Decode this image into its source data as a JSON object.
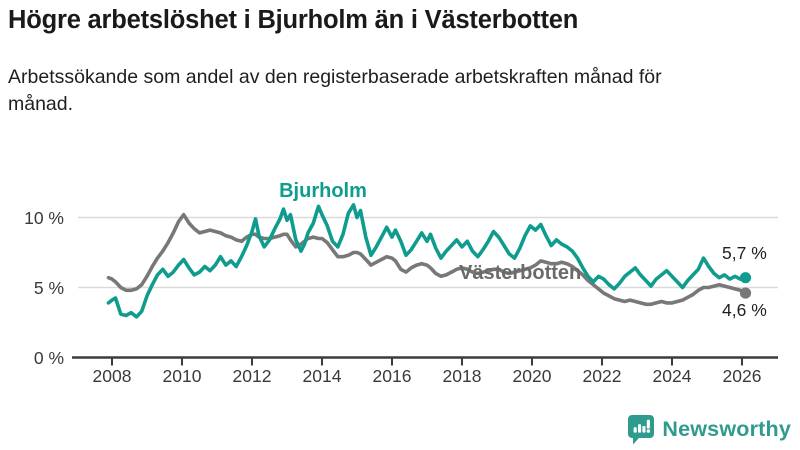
{
  "title": "Högre arbetslöshet i Bjurholm än i Västerbotten",
  "subtitle": "Arbetssökande som andel av den registerbaserade arbetskraften månad för månad.",
  "branding": {
    "logo_text": "Newsworthy",
    "logo_color": "#2f9b8d",
    "logo_icon": "bar-chart-speech-bubble-icon"
  },
  "colors": {
    "bjurholm_teal": "#0f9c8e",
    "vasterbotten_gray": "#787878",
    "vasterbotten_label_gray": "#6a6a6a",
    "grid": "#dadada",
    "axis": "#3c3c3c",
    "axis_text": "#3a3a3a",
    "end_label_text": "#1f1f1f"
  },
  "chart_data": {
    "type": "line",
    "title": "Högre arbetslöshet i Bjurholm än i Västerbotten",
    "xlabel": "",
    "ylabel": "",
    "unit": "%",
    "grid": "horizontal",
    "legend_position": "inline-labels",
    "x_axis": {
      "tick_values": [
        2008,
        2010,
        2012,
        2014,
        2016,
        2018,
        2020,
        2022,
        2024,
        2026
      ],
      "tick_labels": [
        "2008",
        "2010",
        "2012",
        "2014",
        "2016",
        "2018",
        "2020",
        "2022",
        "2024",
        "2026"
      ],
      "range": [
        2007.8,
        2027.0
      ]
    },
    "y_axis": {
      "tick_values": [
        0,
        5,
        10
      ],
      "tick_labels": [
        "0 %",
        "5 %",
        "10 %"
      ],
      "range": [
        0,
        11.5
      ]
    },
    "x": [
      2007.9,
      2008.0,
      2008.1,
      2008.25,
      2008.4,
      2008.55,
      2008.7,
      2008.85,
      2009.0,
      2009.15,
      2009.3,
      2009.45,
      2009.6,
      2009.75,
      2009.9,
      2010.05,
      2010.2,
      2010.35,
      2010.5,
      2010.65,
      2010.8,
      2010.95,
      2011.1,
      2011.25,
      2011.4,
      2011.55,
      2011.7,
      2011.85,
      2012.0,
      2012.1,
      2012.2,
      2012.35,
      2012.5,
      2012.65,
      2012.8,
      2012.9,
      2013.0,
      2013.1,
      2013.25,
      2013.4,
      2013.5,
      2013.6,
      2013.75,
      2013.9,
      2014.0,
      2014.15,
      2014.3,
      2014.45,
      2014.6,
      2014.75,
      2014.9,
      2015.0,
      2015.1,
      2015.25,
      2015.4,
      2015.55,
      2015.7,
      2015.85,
      2016.0,
      2016.1,
      2016.25,
      2016.4,
      2016.55,
      2016.7,
      2016.85,
      2017.0,
      2017.1,
      2017.25,
      2017.4,
      2017.55,
      2017.7,
      2017.85,
      2018.0,
      2018.15,
      2018.3,
      2018.45,
      2018.6,
      2018.75,
      2018.9,
      2019.05,
      2019.2,
      2019.35,
      2019.5,
      2019.65,
      2019.8,
      2019.95,
      2020.1,
      2020.25,
      2020.4,
      2020.55,
      2020.7,
      2020.85,
      2021.0,
      2021.15,
      2021.3,
      2021.45,
      2021.6,
      2021.75,
      2021.9,
      2022.05,
      2022.2,
      2022.35,
      2022.5,
      2022.65,
      2022.8,
      2022.95,
      2023.1,
      2023.25,
      2023.4,
      2023.55,
      2023.7,
      2023.85,
      2024.0,
      2024.15,
      2024.3,
      2024.45,
      2024.6,
      2024.75,
      2024.9,
      2025.05,
      2025.2,
      2025.35,
      2025.5,
      2025.65,
      2025.8,
      2025.95,
      2026.1
    ],
    "series": [
      {
        "name": "Bjurholm",
        "color": "#0f9c8e",
        "label_color": "#0f9c8e",
        "end_label": "5,7 %",
        "end_value": 5.7,
        "values": [
          3.9,
          4.1,
          4.25,
          3.1,
          3.0,
          3.2,
          2.9,
          3.3,
          4.4,
          5.2,
          5.9,
          6.3,
          5.8,
          6.1,
          6.6,
          7.0,
          6.4,
          5.9,
          6.1,
          6.5,
          6.2,
          6.6,
          7.2,
          6.6,
          6.9,
          6.5,
          7.2,
          8.0,
          9.0,
          9.9,
          8.7,
          7.9,
          8.4,
          9.2,
          9.9,
          10.6,
          9.8,
          10.2,
          8.4,
          7.6,
          8.1,
          8.9,
          9.6,
          10.8,
          10.2,
          9.4,
          8.3,
          7.9,
          8.8,
          10.3,
          10.9,
          10.0,
          10.5,
          8.6,
          7.3,
          7.9,
          8.6,
          9.3,
          8.6,
          9.1,
          8.3,
          7.3,
          7.7,
          8.3,
          8.9,
          8.3,
          8.8,
          7.8,
          7.1,
          7.6,
          8.0,
          8.4,
          7.9,
          8.3,
          7.6,
          7.2,
          7.7,
          8.3,
          9.0,
          8.6,
          8.0,
          7.4,
          7.1,
          7.8,
          8.7,
          9.4,
          9.1,
          9.5,
          8.7,
          8.0,
          8.4,
          8.1,
          7.9,
          7.6,
          7.1,
          6.4,
          5.8,
          5.4,
          5.8,
          5.6,
          5.2,
          4.9,
          5.3,
          5.8,
          6.1,
          6.4,
          5.9,
          5.5,
          5.1,
          5.6,
          5.9,
          6.2,
          5.8,
          5.4,
          5.0,
          5.5,
          5.9,
          6.3,
          7.1,
          6.5,
          6.0,
          5.7,
          5.9,
          5.6,
          5.8,
          5.6,
          5.7
        ]
      },
      {
        "name": "Västerbotten",
        "color": "#787878",
        "label_color": "#6a6a6a",
        "end_label": "4,6 %",
        "end_value": 4.6,
        "values": [
          5.7,
          5.6,
          5.4,
          5.0,
          4.8,
          4.8,
          4.9,
          5.2,
          5.8,
          6.5,
          7.1,
          7.6,
          8.2,
          8.9,
          9.7,
          10.2,
          9.6,
          9.2,
          8.9,
          9.0,
          9.1,
          9.0,
          8.9,
          8.7,
          8.6,
          8.4,
          8.3,
          8.6,
          8.8,
          8.8,
          8.6,
          8.5,
          8.5,
          8.6,
          8.7,
          8.8,
          8.8,
          8.4,
          7.9,
          8.1,
          8.3,
          8.5,
          8.6,
          8.5,
          8.5,
          8.2,
          7.7,
          7.2,
          7.2,
          7.3,
          7.5,
          7.5,
          7.4,
          7.0,
          6.6,
          6.8,
          7.0,
          7.2,
          7.1,
          6.9,
          6.3,
          6.1,
          6.4,
          6.6,
          6.7,
          6.6,
          6.4,
          6.0,
          5.8,
          5.9,
          6.1,
          6.3,
          6.4,
          6.3,
          6.1,
          6.0,
          6.1,
          6.2,
          6.3,
          6.3,
          6.1,
          6.0,
          6.1,
          6.2,
          6.3,
          6.4,
          6.6,
          6.9,
          6.8,
          6.7,
          6.7,
          6.8,
          6.7,
          6.5,
          6.2,
          5.9,
          5.5,
          5.2,
          4.9,
          4.6,
          4.4,
          4.2,
          4.1,
          4.0,
          4.1,
          4.0,
          3.9,
          3.8,
          3.8,
          3.9,
          4.0,
          3.9,
          3.9,
          4.0,
          4.1,
          4.3,
          4.5,
          4.8,
          5.0,
          5.0,
          5.1,
          5.2,
          5.1,
          5.0,
          4.9,
          4.8,
          4.6
        ]
      }
    ]
  }
}
